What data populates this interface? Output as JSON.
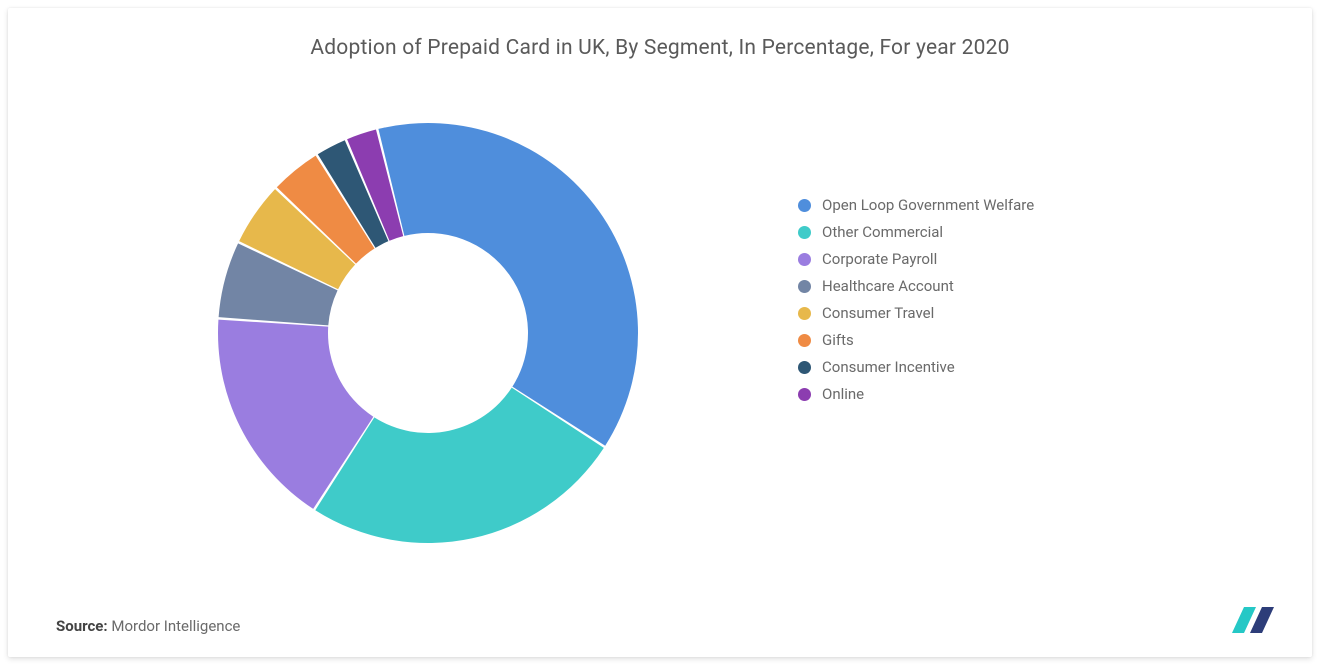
{
  "title": "Adoption of Prepaid Card in UK, By Segment, In Percentage, For year 2020",
  "source_label": "Source:",
  "source_value": "Mordor Intelligence",
  "chart": {
    "type": "donut",
    "outer_radius": 210,
    "inner_radius": 100,
    "background_color": "#ffffff",
    "start_angle_deg": -14,
    "segments": [
      {
        "label": "Open Loop Government Welfare",
        "value": 38,
        "color": "#4f8edc"
      },
      {
        "label": "Other Commercial",
        "value": 25,
        "color": "#3fcbc9"
      },
      {
        "label": "Corporate Payroll",
        "value": 17,
        "color": "#9a7de0"
      },
      {
        "label": "Healthcare Account",
        "value": 6,
        "color": "#7285a5"
      },
      {
        "label": "Consumer Travel",
        "value": 5,
        "color": "#e7b84b"
      },
      {
        "label": "Gifts",
        "value": 4,
        "color": "#ef8b44"
      },
      {
        "label": "Consumer Incentive",
        "value": 2.5,
        "color": "#2e5775"
      },
      {
        "label": "Online",
        "value": 2.5,
        "color": "#8c3db0"
      }
    ]
  },
  "legend_label_fontsize": 15,
  "title_fontsize": 21,
  "title_color": "#5a5a5a",
  "legend_text_color": "#6a6a6a",
  "logo_colors": {
    "bar1": "#25c8c6",
    "bar2": "#2d3d79"
  }
}
